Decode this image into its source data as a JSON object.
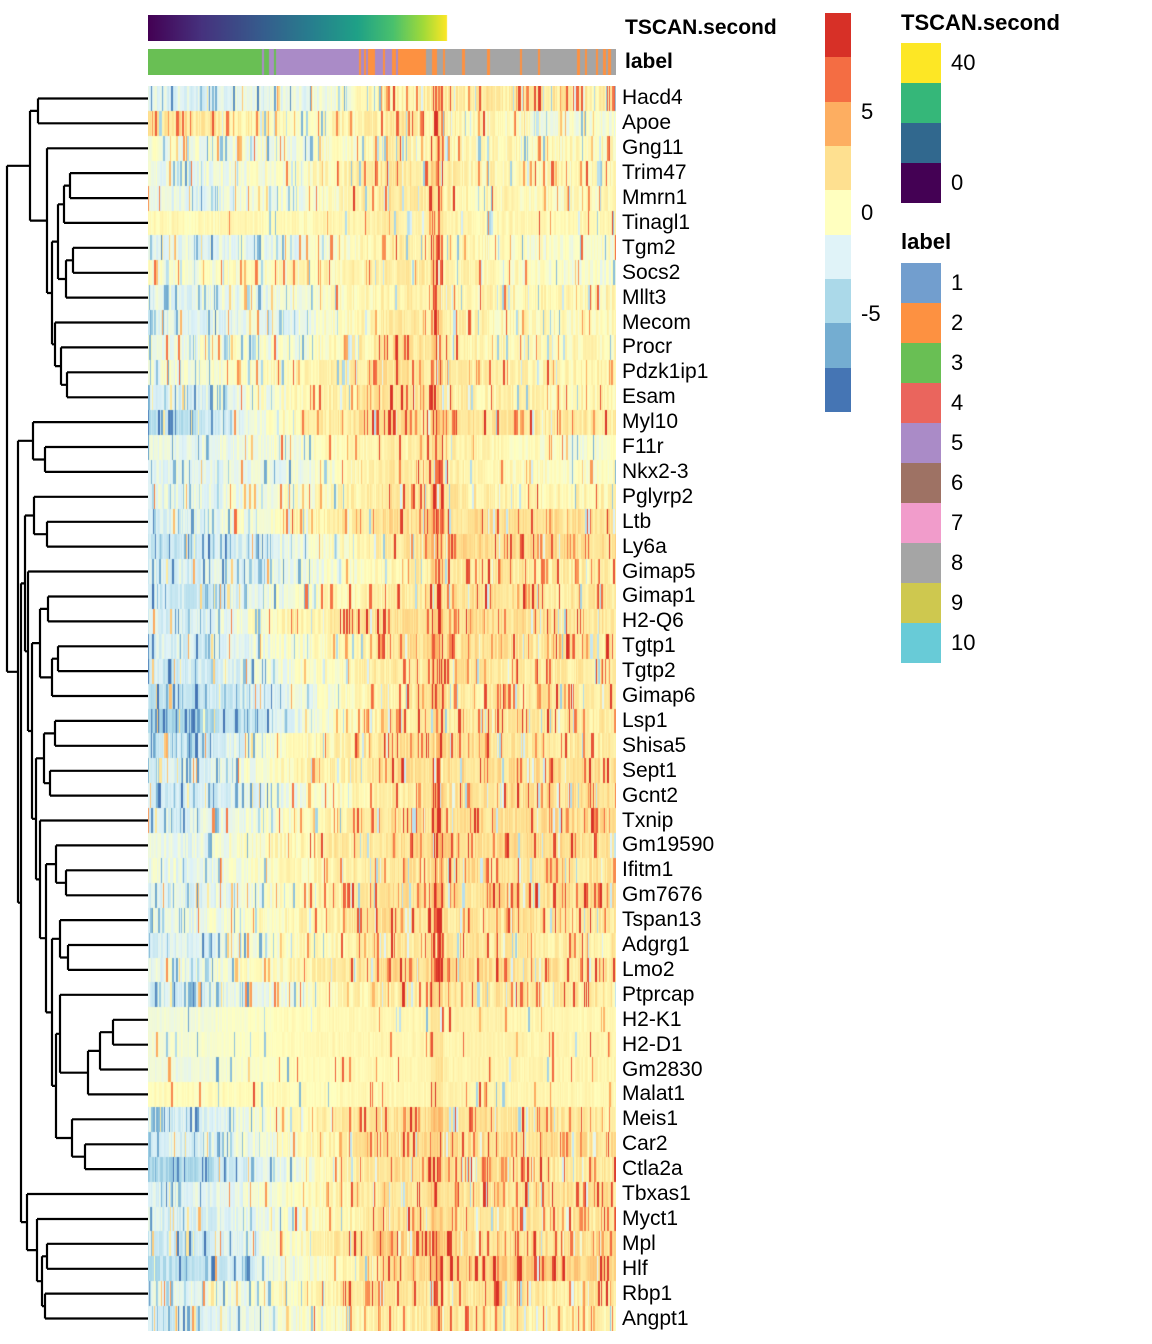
{
  "annotations": {
    "tscan_title": "TSCAN.second",
    "label_title": "label"
  },
  "colorbar": {
    "colors": [
      "#D73027",
      "#F46D43",
      "#FDAE61",
      "#FEE090",
      "#FFFFBF",
      "#E0F3F8",
      "#ABD9E9",
      "#74ADD1",
      "#4575B4"
    ],
    "ticks": [
      {
        "label": "5",
        "value": 5
      },
      {
        "label": "0",
        "value": 0
      },
      {
        "label": "-5",
        "value": -5
      }
    ]
  },
  "legend_tscan": {
    "title": "TSCAN.second",
    "entries": [
      {
        "label": "40",
        "color": "#FDE725"
      },
      {
        "label": "",
        "color": "#35B779"
      },
      {
        "label": "",
        "color": "#31688E"
      },
      {
        "label": "0",
        "color": "#440154"
      }
    ]
  },
  "legend_label": {
    "title": "label",
    "entries": [
      {
        "label": "1",
        "color": "#729ECE"
      },
      {
        "label": "2",
        "color": "#FD9141"
      },
      {
        "label": "3",
        "color": "#69BF54"
      },
      {
        "label": "4",
        "color": "#EA655D"
      },
      {
        "label": "5",
        "color": "#AA8BC7"
      },
      {
        "label": "6",
        "color": "#9E7264"
      },
      {
        "label": "7",
        "color": "#F19CCB"
      },
      {
        "label": "8",
        "color": "#A5A5A5"
      },
      {
        "label": "9",
        "color": "#CEC84F"
      },
      {
        "label": "10",
        "color": "#68CBD7"
      }
    ]
  },
  "chart_data": {
    "type": "heatmap",
    "title": "",
    "rows": [
      "Hacd4",
      "Apoe",
      "Gng11",
      "Trim47",
      "Mmrn1",
      "Tinagl1",
      "Tgm2",
      "Socs2",
      "Mllt3",
      "Mecom",
      "Procr",
      "Pdzk1ip1",
      "Esam",
      "Myl10",
      "F11r",
      "Nkx2-3",
      "Pglyrp2",
      "Ltb",
      "Ly6a",
      "Gimap5",
      "Gimap1",
      "H2-Q6",
      "Tgtp1",
      "Tgtp2",
      "Gimap6",
      "Lsp1",
      "Shisa5",
      "Sept1",
      "Gcnt2",
      "Txnip",
      "Gm19590",
      "Ifitm1",
      "Gm7676",
      "Tspan13",
      "Adgrg1",
      "Lmo2",
      "Ptprcap",
      "H2-K1",
      "H2-D1",
      "Gm2830",
      "Malat1",
      "Meis1",
      "Car2",
      "Ctla2a",
      "Tbxas1",
      "Myct1",
      "Mpl",
      "Hlf",
      "Rbp1",
      "Angpt1"
    ],
    "value_scale": {
      "palette": "RdYlBu reversed",
      "tick_values": [
        5,
        0,
        -5
      ],
      "stops": [
        [
          -6.5,
          "#4575B4"
        ],
        [
          -5,
          "#74ADD1"
        ],
        [
          -3.2,
          "#ABD9E9"
        ],
        [
          -1.4,
          "#E0F3F8"
        ],
        [
          0,
          "#FFFFBF"
        ],
        [
          1.6,
          "#FEE090"
        ],
        [
          3.2,
          "#FDAE61"
        ],
        [
          4.8,
          "#F46D43"
        ],
        [
          6.5,
          "#D73027"
        ]
      ]
    },
    "column_annotations": {
      "TSCAN.second": {
        "type": "continuous",
        "palette": "viridis",
        "range": [
          0,
          40
        ],
        "gradient_fraction": 0.639,
        "stops": [
          [
            0,
            "#440154"
          ],
          [
            0.18,
            "#46327E"
          ],
          [
            0.38,
            "#365C8D"
          ],
          [
            0.55,
            "#277F8E"
          ],
          [
            0.7,
            "#1FA187"
          ],
          [
            0.82,
            "#4AC16D"
          ],
          [
            0.92,
            "#A0DA39"
          ],
          [
            1,
            "#FDE725"
          ]
        ]
      },
      "label": {
        "type": "categorical",
        "levels": [
          "1",
          "2",
          "3",
          "4",
          "5",
          "6",
          "7",
          "8",
          "9",
          "10"
        ],
        "segments": [
          {
            "from": 0.0,
            "to": 0.243,
            "mix": {
              "3": 1
            }
          },
          {
            "from": 0.243,
            "to": 0.272,
            "mix": {
              "3": 0.45,
              "5": 0.55
            }
          },
          {
            "from": 0.272,
            "to": 0.43,
            "mix": {
              "5": 0.985,
              "2": 0.015
            }
          },
          {
            "from": 0.43,
            "to": 0.5,
            "mix": {
              "5": 0.72,
              "2": 0.28
            }
          },
          {
            "from": 0.5,
            "to": 0.54,
            "mix": {
              "5": 0.35,
              "2": 0.65
            }
          },
          {
            "from": 0.54,
            "to": 0.592,
            "mix": {
              "2": 1
            }
          },
          {
            "from": 0.592,
            "to": 1.0,
            "mix": {
              "8": 0.82,
              "2": 0.18
            }
          }
        ]
      }
    },
    "row_profiles_note": "estimated mean expression per column-zone [0-25%,25-45%,45-62%,62-80%,80-100%] plus noise factor",
    "row_profiles": [
      [
        -1.3,
        -1.1,
        0.6,
        1.0,
        0.9,
        1.0
      ],
      [
        1.3,
        0.0,
        1.0,
        0.3,
        -0.6,
        1.0
      ],
      [
        -0.7,
        -0.6,
        0.6,
        0.3,
        0.2,
        1.0
      ],
      [
        -0.9,
        -0.1,
        1.4,
        0.4,
        0.3,
        1.0
      ],
      [
        -1.1,
        -0.6,
        1.3,
        0.3,
        0.2,
        1.0
      ],
      [
        0.3,
        0.3,
        0.9,
        0.4,
        0.4,
        0.55
      ],
      [
        -1.1,
        -0.9,
        0.9,
        0.1,
        -0.4,
        1.0
      ],
      [
        -0.4,
        0.1,
        0.9,
        0.4,
        -0.5,
        1.0
      ],
      [
        -1.1,
        -0.6,
        0.7,
        0.4,
        0.4,
        1.0
      ],
      [
        -1.3,
        -0.9,
        1.1,
        0.4,
        0.2,
        1.0
      ],
      [
        -0.6,
        -0.4,
        1.4,
        0.4,
        0.2,
        1.0
      ],
      [
        -0.6,
        0.4,
        1.4,
        0.7,
        0.4,
        1.0
      ],
      [
        -1.6,
        0.2,
        1.4,
        0.7,
        0.4,
        1.0
      ],
      [
        -2.6,
        0.6,
        1.6,
        1.2,
        0.9,
        1.0
      ],
      [
        -1.0,
        -0.4,
        0.8,
        0.6,
        -0.4,
        0.8
      ],
      [
        -1.2,
        -0.8,
        1.0,
        0.5,
        -0.2,
        0.8
      ],
      [
        -1.2,
        -0.2,
        1.2,
        0.8,
        0.5,
        1.0
      ],
      [
        -1.4,
        0.6,
        1.5,
        1.4,
        1.3,
        1.0
      ],
      [
        -2.2,
        -0.8,
        1.2,
        1.6,
        1.5,
        1.0
      ],
      [
        -1.6,
        -1.0,
        0.6,
        1.0,
        0.8,
        1.0
      ],
      [
        -2.0,
        -0.4,
        1.0,
        1.4,
        1.0,
        1.0
      ],
      [
        -1.6,
        0.8,
        1.4,
        1.5,
        1.4,
        1.0
      ],
      [
        -1.6,
        -0.4,
        1.4,
        1.4,
        1.0,
        1.0
      ],
      [
        -2.0,
        -0.4,
        1.0,
        1.0,
        0.8,
        1.0
      ],
      [
        -2.4,
        -0.9,
        1.0,
        1.0,
        1.0,
        1.0
      ],
      [
        -3.4,
        -1.0,
        1.0,
        1.0,
        1.0,
        1.0
      ],
      [
        -2.0,
        0.0,
        1.4,
        1.4,
        1.0,
        1.0
      ],
      [
        -1.5,
        0.5,
        1.5,
        1.5,
        1.4,
        1.0
      ],
      [
        -2.0,
        -0.5,
        1.0,
        1.4,
        1.4,
        1.0
      ],
      [
        -1.4,
        0.0,
        1.4,
        1.5,
        1.5,
        1.0
      ],
      [
        -1.0,
        0.5,
        1.5,
        1.5,
        1.5,
        1.0
      ],
      [
        -1.0,
        0.3,
        1.2,
        1.5,
        1.1,
        1.0
      ],
      [
        -1.4,
        0.3,
        1.5,
        1.5,
        1.4,
        1.0
      ],
      [
        -1.0,
        0.5,
        1.5,
        1.2,
        1.1,
        1.0
      ],
      [
        -1.5,
        0.0,
        1.2,
        1.1,
        0.9,
        1.0
      ],
      [
        -1.0,
        0.5,
        1.6,
        1.5,
        1.1,
        1.0
      ],
      [
        -1.6,
        -0.4,
        1.0,
        1.0,
        1.0,
        1.0
      ],
      [
        -0.6,
        0.3,
        0.4,
        0.6,
        0.4,
        0.35
      ],
      [
        -0.5,
        0.3,
        0.4,
        0.6,
        0.5,
        0.35
      ],
      [
        -0.8,
        0.2,
        0.4,
        0.6,
        0.5,
        0.4
      ],
      [
        0.1,
        0.2,
        0.4,
        0.6,
        0.4,
        0.4
      ],
      [
        -1.6,
        0.4,
        1.5,
        1.4,
        1.0,
        1.0
      ],
      [
        -1.5,
        0.0,
        1.6,
        1.5,
        1.4,
        1.0
      ],
      [
        -3.0,
        -0.6,
        1.5,
        1.4,
        1.0,
        1.0
      ],
      [
        -1.5,
        0.0,
        1.5,
        1.1,
        1.4,
        1.0
      ],
      [
        -1.6,
        -0.5,
        1.6,
        1.1,
        1.0,
        1.0
      ],
      [
        -2.0,
        0.1,
        2.4,
        1.5,
        1.4,
        1.0
      ],
      [
        -2.6,
        -0.4,
        1.6,
        2.0,
        1.9,
        1.0
      ],
      [
        -1.1,
        0.1,
        1.5,
        1.1,
        1.0,
        1.0
      ],
      [
        -1.6,
        -0.3,
        0.9,
        1.0,
        0.6,
        1.0
      ]
    ],
    "row_dendrogram": [
      7,
      [
        30,
        [
          38,
          0,
          1
        ],
        [
          47,
          2,
          [
            52,
            [
              58,
              [
                64,
                [
                  70,
                  3,
                  4
                ],
                5
              ],
              [
                66,
                [
                  73,
                  6,
                  7
                ],
                8
              ]
            ],
            [
              55,
              9,
              [
                61,
                10,
                [
                  67,
                  11,
                  12
                ]
              ]
            ]
          ]
        ]
      ],
      [
        18,
        [
          33,
          13,
          [
            45,
            14,
            15
          ]
        ],
        [
          21,
          [
            25,
            [
              34,
              16,
              [
                47,
                17,
                18
              ]
            ],
            [
              28,
              19,
              [
                32,
                [
                  40,
                  [
                    48,
                    20,
                    21
                  ],
                  [
                    52,
                    [
                      58,
                      22,
                      23
                    ],
                    24
                  ]
                ],
                [
                  36,
                  [
                    44,
                    [
                      55,
                      25,
                      26
                    ],
                    [
                      50,
                      27,
                      28
                    ]
                  ],
                  [
                    40,
                    29,
                    [
                      46,
                      [
                        56,
                        30,
                        [
                          66,
                          31,
                          32
                        ]
                      ],
                      [
                        52,
                        [
                          60,
                          33,
                          [
                            68,
                            34,
                            35
                          ]
                        ],
                        [
                          56,
                          [
                            60,
                            36,
                            [
                              88,
                              [
                                100,
                                [
                                  113,
                                  37,
                                  38
                                ],
                                39
                              ],
                              40
                            ]
                          ],
                          [
                            72,
                            41,
                            [
                              85,
                              42,
                              43
                            ]
                          ]
                        ]
                      ]
                    ]
                  ]
                ]
              ]
            ]
          ],
          [
            27,
            44,
            [
              37,
              45,
              [
                42,
                [
                  47,
                  46,
                  47
                ],
                [
                  45,
                  48,
                  49
                ]
              ]
            ]
          ]
        ]
      ]
    ]
  }
}
